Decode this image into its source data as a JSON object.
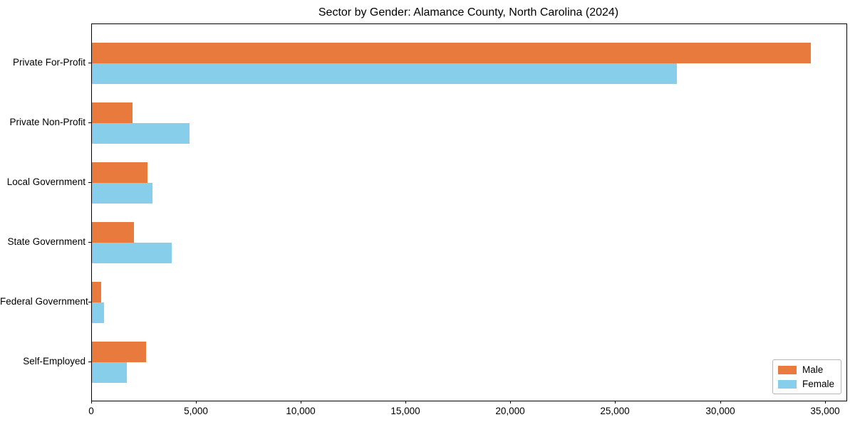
{
  "chart_data": {
    "type": "bar",
    "orientation": "horizontal",
    "title": "Sector by Gender: Alamance County, North Carolina (2024)",
    "categories": [
      "Private For-Profit",
      "Private Non-Profit",
      "Local Government",
      "State Government",
      "Federal Government",
      "Self-Employed"
    ],
    "series": [
      {
        "name": "Male",
        "color": "#e87a3e",
        "values": [
          34300,
          1950,
          2650,
          2000,
          430,
          2600
        ]
      },
      {
        "name": "Female",
        "color": "#87ceeb",
        "values": [
          27900,
          4650,
          2900,
          3800,
          570,
          1650
        ]
      }
    ],
    "xlim": [
      0,
      36000
    ],
    "xticks": [
      0,
      5000,
      10000,
      15000,
      20000,
      25000,
      30000,
      35000
    ],
    "xtick_format": "comma",
    "xlabel": "",
    "ylabel": "",
    "grid": false,
    "plot_background": "#ffffff",
    "spine_color": "#000000",
    "legend": {
      "position": "lower right"
    }
  }
}
